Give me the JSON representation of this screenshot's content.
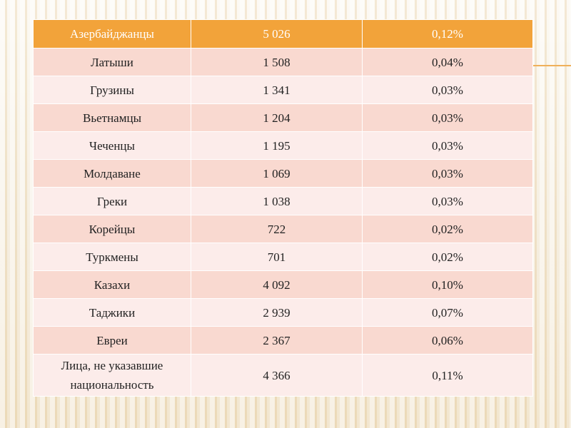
{
  "header": {
    "name": "Азербайджанцы",
    "count": "5 026",
    "percent": "0,12%"
  },
  "rows": [
    {
      "name": "Латыши",
      "count": "1 508",
      "percent": "0,04%"
    },
    {
      "name": "Грузины",
      "count": "1 341",
      "percent": "0,03%"
    },
    {
      "name": "Вьетнамцы",
      "count": "1 204",
      "percent": "0,03%"
    },
    {
      "name": "Чеченцы",
      "count": "1 195",
      "percent": "0,03%"
    },
    {
      "name": "Молдаване",
      "count": "1 069",
      "percent": "0,03%"
    },
    {
      "name": "Греки",
      "count": "1 038",
      "percent": "0,03%"
    },
    {
      "name": "Корейцы",
      "count": "722",
      "percent": "0,02%"
    },
    {
      "name": "Туркмены",
      "count": "701",
      "percent": "0,02%"
    },
    {
      "name": "Казахи",
      "count": "4 092",
      "percent": "0,10%"
    },
    {
      "name": "Таджики",
      "count": "2 939",
      "percent": "0,07%"
    },
    {
      "name": "Евреи",
      "count": "2 367",
      "percent": "0,06%"
    },
    {
      "name": "Лица, не указавшие национальность",
      "count": "4 366",
      "percent": "0,11%"
    }
  ],
  "colors": {
    "header": "#f2a33a",
    "row_odd": "#f9d9d0",
    "row_even": "#fcecea",
    "accent": "#f0b05a"
  }
}
